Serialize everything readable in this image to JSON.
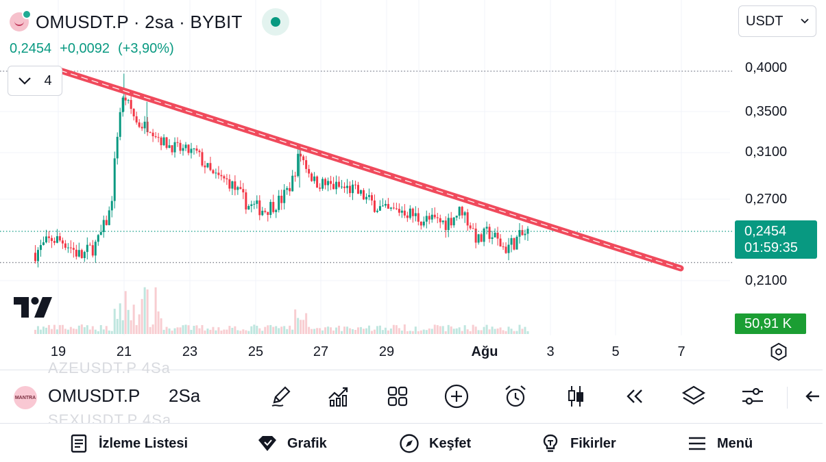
{
  "header": {
    "symbol_title": "OMUSDT.P · 2sa · BYBIT",
    "last_price": "0,2454",
    "change_abs": "+0,0092",
    "change_pct": "(+3,90%)",
    "indicator_count": "4",
    "currency": "USDT"
  },
  "price_axis": {
    "labels": [
      "0,4000",
      "0,3500",
      "0,3100",
      "0,2700",
      "0,2100"
    ],
    "current_price": "0,2454",
    "countdown": "01:59:35",
    "volume": "50,91 K"
  },
  "time_axis": {
    "labels": [
      "19",
      "21",
      "23",
      "25",
      "27",
      "29",
      "Ağu",
      "3",
      "5",
      "7"
    ]
  },
  "toolbar": {
    "ghost_top": "AZEUSDT.P   4Sa",
    "ghost_bottom": "SEXUSDT.P   4Sa",
    "symbol_logo_text": "MANTRA",
    "symbol": "OMUSDT.P",
    "interval": "2Sa"
  },
  "bottom_nav": {
    "watchlist": "İzleme Listesi",
    "chart": "Grafik",
    "explore": "Keşfet",
    "ideas": "Fikirler",
    "menu": "Menü"
  },
  "colors": {
    "up": "#089981",
    "down": "#f23645",
    "trendline": "#f04a5c",
    "volume_tag": "#1b9e33"
  },
  "chart_data": {
    "type": "candlestick",
    "title": "OMUSDT.P · 2sa · BYBIT",
    "x_ticks": [
      "19",
      "21",
      "23",
      "25",
      "27",
      "29",
      "Ağu",
      "3",
      "5",
      "7"
    ],
    "y_ticks": [
      0.4,
      0.35,
      0.31,
      0.27,
      0.21
    ],
    "ylim": [
      0.186,
      0.42
    ],
    "last_price": 0.2454,
    "horizontal_levels": [
      0.4,
      0.2454,
      0.223
    ],
    "trendline": {
      "from": {
        "day": 19.1,
        "price": 0.4
      },
      "to": {
        "day": 8.0,
        "price": 0.22
      }
    },
    "close_path": [
      [
        18.3,
        0.23
      ],
      [
        18.8,
        0.24
      ],
      [
        19.2,
        0.238
      ],
      [
        19.7,
        0.227
      ],
      [
        20.2,
        0.237
      ],
      [
        20.6,
        0.262
      ],
      [
        20.85,
        0.345
      ],
      [
        21.0,
        0.37
      ],
      [
        21.4,
        0.338
      ],
      [
        21.8,
        0.335
      ],
      [
        22.2,
        0.32
      ],
      [
        22.7,
        0.313
      ],
      [
        23.2,
        0.31
      ],
      [
        23.7,
        0.29
      ],
      [
        24.2,
        0.285
      ],
      [
        24.8,
        0.265
      ],
      [
        25.3,
        0.262
      ],
      [
        25.8,
        0.27
      ],
      [
        26.1,
        0.283
      ],
      [
        26.35,
        0.31
      ],
      [
        26.8,
        0.285
      ],
      [
        27.4,
        0.281
      ],
      [
        28.0,
        0.278
      ],
      [
        28.5,
        0.268
      ],
      [
        29.0,
        0.26
      ],
      [
        29.5,
        0.262
      ],
      [
        30.0,
        0.255
      ],
      [
        30.8,
        0.252
      ],
      [
        31.3,
        0.262
      ],
      [
        31.8,
        0.238
      ],
      [
        32.1,
        0.245
      ],
      [
        32.6,
        0.233
      ],
      [
        33.0,
        0.24
      ],
      [
        33.35,
        0.2454
      ]
    ]
  }
}
